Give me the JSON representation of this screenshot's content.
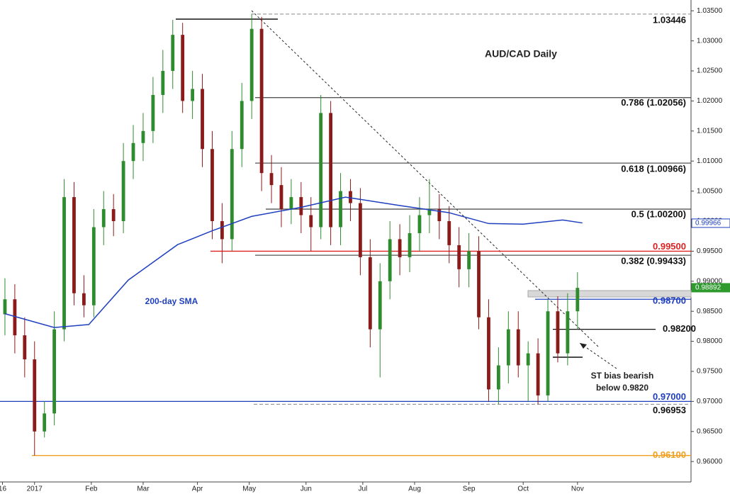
{
  "chart_data": {
    "type": "candlestick",
    "title": "AUD/CAD Daily",
    "xlim": [
      -2,
      278
    ],
    "ylim": [
      0.9566,
      1.0368
    ],
    "xticks": [
      {
        "value": -1,
        "label": "16"
      },
      {
        "value": 12,
        "label": "2017"
      },
      {
        "value": 35,
        "label": "Feb"
      },
      {
        "value": 56,
        "label": "Mar"
      },
      {
        "value": 78,
        "label": "Apr"
      },
      {
        "value": 99,
        "label": "May"
      },
      {
        "value": 122,
        "label": "Jun"
      },
      {
        "value": 145,
        "label": "Jul"
      },
      {
        "value": 166,
        "label": "Aug"
      },
      {
        "value": 188,
        "label": "Sep"
      },
      {
        "value": 210,
        "label": "Oct"
      },
      {
        "value": 232,
        "label": "Nov"
      }
    ],
    "yticks": [
      {
        "value": 0.96,
        "label": "0.96000"
      },
      {
        "value": 0.965,
        "label": "0.96500"
      },
      {
        "value": 0.97,
        "label": "0.97000"
      },
      {
        "value": 0.975,
        "label": "0.97500"
      },
      {
        "value": 0.98,
        "label": "0.98000"
      },
      {
        "value": 0.985,
        "label": "0.98500"
      },
      {
        "value": 0.99,
        "label": "0.99000"
      },
      {
        "value": 0.995,
        "label": "0.99500"
      },
      {
        "value": 1.0,
        "label": "1.00000"
      },
      {
        "value": 1.005,
        "label": "1.00500"
      },
      {
        "value": 1.01,
        "label": "1.01000"
      },
      {
        "value": 1.015,
        "label": "1.01500"
      },
      {
        "value": 1.02,
        "label": "1.02000"
      },
      {
        "value": 1.025,
        "label": "1.02500"
      },
      {
        "value": 1.03,
        "label": "1.03000"
      },
      {
        "value": 1.035,
        "label": "1.03500"
      }
    ],
    "up_color": "#2e8b2e",
    "down_color": "#8b1a1a",
    "candles": {
      "x": [
        0,
        4,
        8,
        12,
        16,
        20,
        24,
        28,
        32,
        36,
        40,
        44,
        48,
        52,
        56,
        60,
        64,
        68,
        72,
        76,
        80,
        84,
        88,
        92,
        96,
        100,
        104,
        108,
        112,
        116,
        120,
        124,
        128,
        132,
        136,
        140,
        144,
        148,
        152,
        156,
        160,
        164,
        168,
        172,
        176,
        180,
        184,
        188,
        192,
        196,
        200,
        204,
        208,
        212,
        216,
        220,
        224,
        228,
        232
      ],
      "open": [
        0.9845,
        0.987,
        0.981,
        0.977,
        0.965,
        0.968,
        0.982,
        1.004,
        0.988,
        0.986,
        0.999,
        1.002,
        1.0,
        1.01,
        1.013,
        1.015,
        1.021,
        1.025,
        1.031,
        1.02,
        1.022,
        1.012,
        1.0,
        0.997,
        1.012,
        1.02,
        1.032,
        1.008,
        1.006,
        1.002,
        1.004,
        1.001,
        0.999,
        1.018,
        0.999,
        1.005,
        1.003,
        0.994,
        0.982,
        0.99,
        0.997,
        0.994,
        0.998,
        1.001,
        1.002,
        1.0,
        0.996,
        0.992,
        0.995,
        0.984,
        0.972,
        0.976,
        0.982,
        0.976,
        0.978,
        0.971,
        0.985,
        0.978,
        0.985
      ],
      "high": [
        0.9905,
        0.9895,
        0.984,
        0.98,
        0.97,
        0.985,
        1.007,
        1.0065,
        0.991,
        1.002,
        1.005,
        1.0045,
        1.013,
        1.016,
        1.018,
        1.024,
        1.0285,
        1.0335,
        1.033,
        1.025,
        1.0245,
        1.015,
        1.003,
        1.015,
        1.023,
        1.0345,
        1.034,
        1.011,
        1.009,
        1.007,
        1.0065,
        1.004,
        1.021,
        1.02,
        1.008,
        1.007,
        1.0055,
        0.997,
        0.993,
        1.0,
        0.9995,
        1.001,
        1.004,
        1.007,
        1.0045,
        1.0025,
        0.999,
        0.998,
        0.9975,
        0.987,
        0.979,
        0.985,
        0.985,
        0.98,
        0.9805,
        0.987,
        0.9875,
        0.988,
        0.9915
      ],
      "low": [
        0.981,
        0.978,
        0.974,
        0.961,
        0.964,
        0.966,
        0.98,
        0.986,
        0.984,
        0.984,
        0.996,
        0.9975,
        0.998,
        1.007,
        1.01,
        1.013,
        1.018,
        1.022,
        1.018,
        1.017,
        1.009,
        0.997,
        0.993,
        0.995,
        1.009,
        1.017,
        1.005,
        1.003,
        0.999,
        0.9995,
        0.998,
        0.995,
        0.997,
        0.996,
        0.996,
        1.0,
        0.991,
        0.979,
        0.974,
        0.987,
        0.991,
        0.9915,
        0.995,
        0.998,
        0.997,
        0.993,
        0.989,
        0.989,
        0.982,
        0.97,
        0.9695,
        0.973,
        0.974,
        0.97,
        0.9695,
        0.97,
        0.9765,
        0.976,
        0.982
      ],
      "close": [
        0.987,
        0.981,
        0.977,
        0.965,
        0.968,
        0.982,
        1.004,
        0.988,
        0.986,
        0.999,
        1.002,
        1.0,
        1.01,
        1.013,
        1.015,
        1.021,
        1.025,
        1.031,
        1.02,
        1.022,
        1.012,
        1.0,
        0.997,
        1.012,
        1.02,
        1.032,
        1.008,
        1.006,
        1.002,
        1.004,
        1.001,
        0.999,
        1.018,
        0.999,
        1.005,
        1.003,
        0.994,
        0.982,
        0.99,
        0.997,
        0.994,
        0.998,
        1.001,
        1.002,
        1.0,
        0.996,
        0.992,
        0.995,
        0.984,
        0.972,
        0.976,
        0.982,
        0.976,
        0.978,
        0.971,
        0.985,
        0.978,
        0.985,
        0.9889
      ]
    },
    "sma": {
      "name": "200-day SMA",
      "color": "#1f3fbf",
      "x": [
        0,
        20,
        34,
        50,
        70,
        84,
        100,
        120,
        138,
        160,
        180,
        196,
        210,
        226,
        234
      ],
      "values": [
        0.9846,
        0.9823,
        0.9828,
        0.9902,
        0.9961,
        0.9984,
        1.0008,
        1.0023,
        1.004,
        1.0026,
        1.0014,
        0.9996,
        0.9995,
        1.0002,
        0.9997
      ]
    },
    "levels": [
      {
        "value": 1.03446,
        "label": "1.03446",
        "color": "#888888",
        "dashed": true
      },
      {
        "value": 1.02056,
        "label": "0.786 (1.02056)",
        "color": "#555555"
      },
      {
        "value": 1.00966,
        "label": "0.618 (1.00966)",
        "color": "#555555"
      },
      {
        "value": 1.002,
        "label": "0.5 (1.00200)",
        "color": "#555555"
      },
      {
        "value": 0.995,
        "label": "0.99500",
        "color": "#dd2222"
      },
      {
        "value": 0.99433,
        "label": "0.382 (0.99433)",
        "color": "#555555"
      },
      {
        "value": 0.987,
        "label": "0.98700",
        "color": "#1f3fbf"
      },
      {
        "value": 0.982,
        "label": "0.98200",
        "color": "#111111"
      },
      {
        "value": 0.97,
        "label": "0.97000",
        "color": "#1f3fbf"
      },
      {
        "value": 0.96953,
        "label": "0.96953",
        "color": "#888888",
        "dashed": true
      },
      {
        "value": 0.961,
        "label": "0.96100",
        "color": "#f0a020"
      }
    ],
    "price_tags": [
      {
        "value": 0.99966,
        "label": "0.99966",
        "color": "#1f3fbf"
      },
      {
        "value": 0.98892,
        "label": "0.98892",
        "color": "#2e9a2e"
      }
    ],
    "annotation": [
      "ST bias bearish",
      "below 0.9820"
    ]
  }
}
